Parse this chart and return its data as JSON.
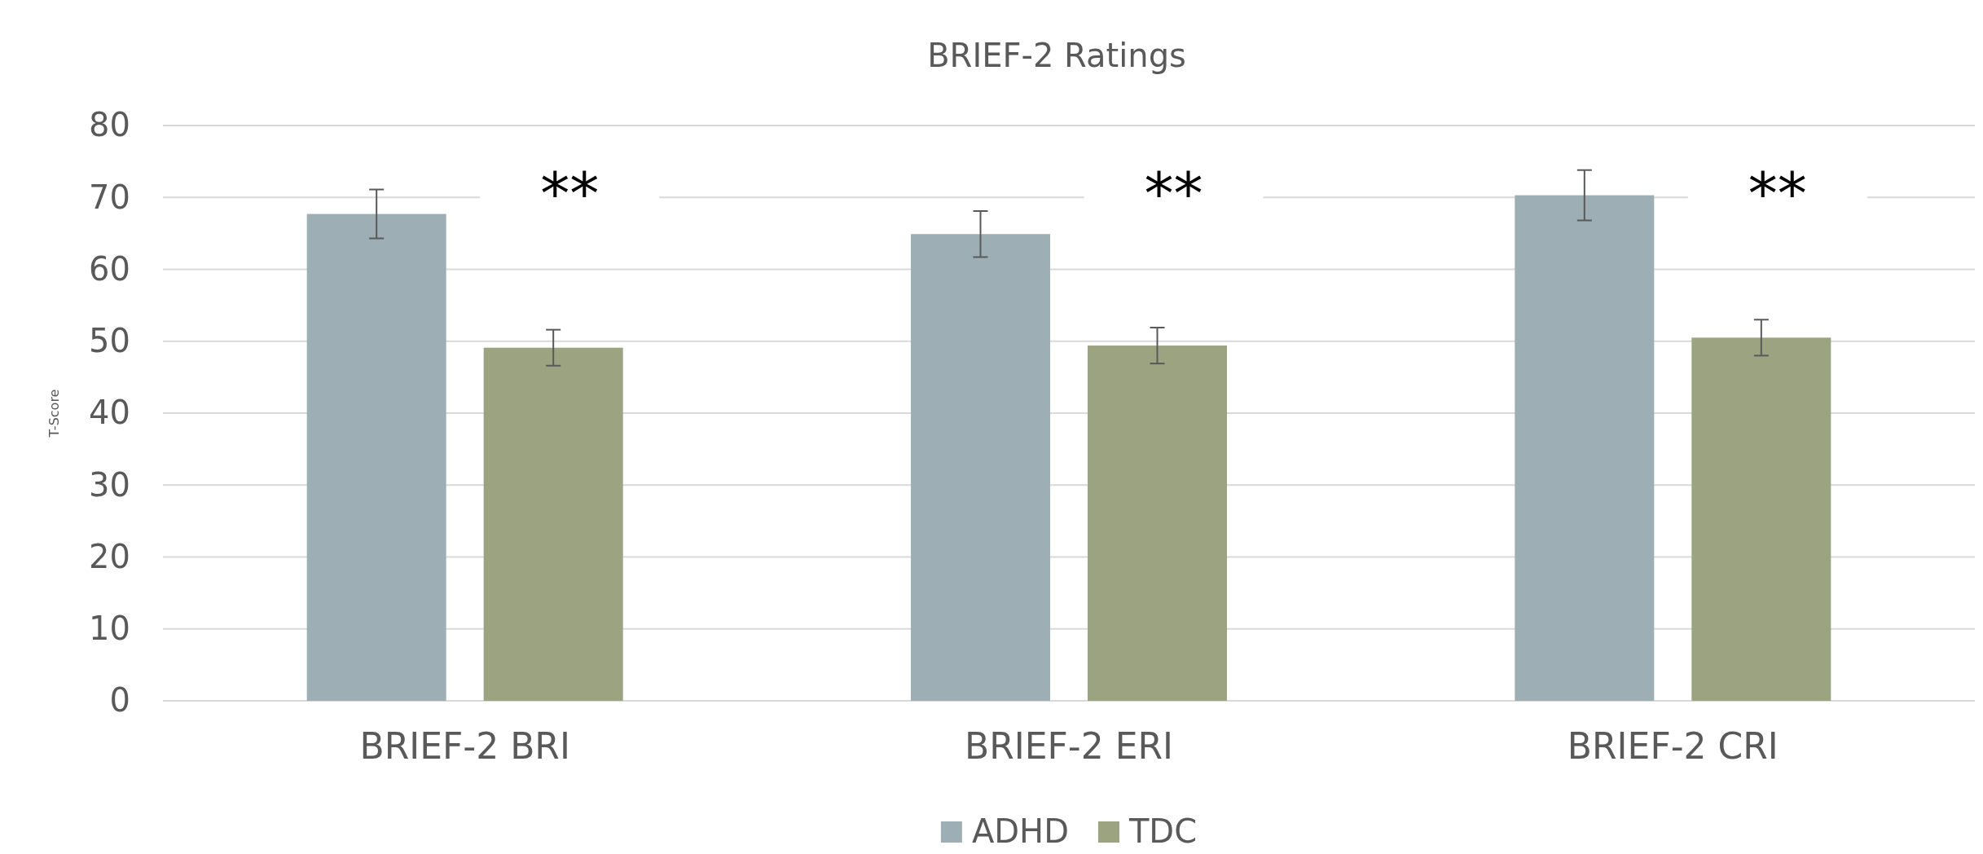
{
  "chart_data": {
    "type": "bar",
    "title": "BRIEF-2 Ratings",
    "ylabel": "T-Score",
    "categories": [
      "BRIEF-2 BRI",
      "BRIEF-2 ERI",
      "BRIEF-2 CRI"
    ],
    "series": [
      {
        "name": "ADHD",
        "color": "#9dafb4",
        "values": [
          67.7,
          64.9,
          70.3
        ],
        "errors": [
          3.4,
          3.2,
          3.5
        ]
      },
      {
        "name": "TDC",
        "color": "#9ca381",
        "values": [
          49.1,
          49.4,
          50.5
        ],
        "errors": [
          2.5,
          2.5,
          2.5
        ]
      }
    ],
    "ylim": [
      0,
      80
    ],
    "yticks": [
      0,
      10,
      20,
      30,
      40,
      50,
      60,
      70,
      80
    ],
    "grid": "y",
    "legend": "bottom",
    "annotations": [
      "**",
      "**",
      "**"
    ]
  }
}
